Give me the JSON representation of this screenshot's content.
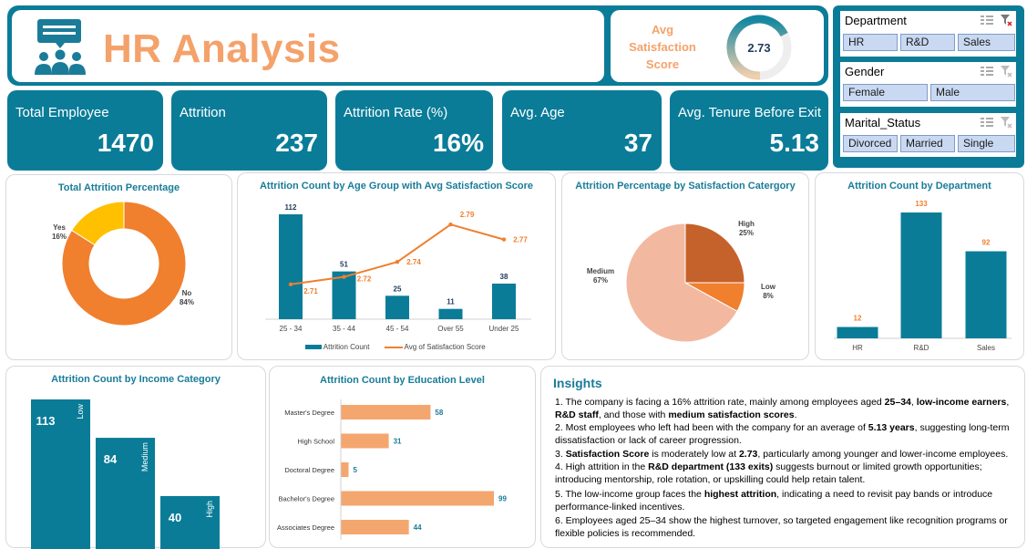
{
  "header": {
    "title": "HR Analysis",
    "gauge_label": "Avg Satisfaction Score",
    "gauge_value": "2.73",
    "gauge_fraction": 0.68
  },
  "kpis": [
    {
      "label": "Total Employee",
      "value": "1470"
    },
    {
      "label": "Attrition",
      "value": "237"
    },
    {
      "label": "Attrition Rate (%)",
      "value": "16%"
    },
    {
      "label": "Avg.  Age",
      "value": "37"
    },
    {
      "label": "Avg.  Tenure Before Exit",
      "value": "5.13"
    }
  ],
  "slicers": [
    {
      "title": "Department",
      "options": [
        "HR",
        "R&D",
        "Sales"
      ]
    },
    {
      "title": "Gender",
      "options": [
        "Female",
        "Male"
      ]
    },
    {
      "title": "Marital_Status",
      "options": [
        "Divorced",
        "Married",
        "Single"
      ]
    }
  ],
  "colors": {
    "teal": "#0a7c98",
    "orange": "#f07f2e",
    "yellow": "#ffc000",
    "peach": "#f4a66f",
    "gauge_start": "#12869f",
    "gauge_end": "#f0cfae"
  },
  "chart_data": [
    {
      "type": "pie",
      "title": "Total Attrition Percentage",
      "donut": true,
      "slices": [
        {
          "name": "Yes",
          "value": 16,
          "label": "16%"
        },
        {
          "name": "No",
          "value": 84,
          "label": "84%"
        }
      ]
    },
    {
      "type": "bar",
      "title": "Attrition Count by Age Group with Avg Satisfaction Score",
      "categories": [
        "25 - 34",
        "35 - 44",
        "45 - 54",
        "Over 55",
        "Under 25"
      ],
      "series": [
        {
          "name": "Attrition Count",
          "type": "bar",
          "values": [
            112,
            51,
            25,
            11,
            38
          ]
        },
        {
          "name": "Avg of Satisfaction Score",
          "type": "line",
          "values": [
            2.71,
            2.72,
            2.74,
            2.79,
            2.77
          ]
        }
      ],
      "legend": "bottom"
    },
    {
      "type": "pie",
      "title": "Attrition Percentage by Satisfaction Catergory",
      "slices": [
        {
          "name": "High",
          "value": 25,
          "label": "25%"
        },
        {
          "name": "Low",
          "value": 8,
          "label": "8%"
        },
        {
          "name": "Medium",
          "value": 67,
          "label": "67%"
        }
      ]
    },
    {
      "type": "bar",
      "title": "Attrition Count  by Department",
      "categories": [
        "HR",
        "R&D",
        "Sales"
      ],
      "values": [
        12,
        133,
        92
      ]
    },
    {
      "type": "bar",
      "title": "Attrition Count by Income Category",
      "categories": [
        "Low",
        "Medium",
        "High"
      ],
      "values": [
        113,
        84,
        40
      ]
    },
    {
      "type": "bar",
      "orientation": "horizontal",
      "title": "Attrition Count by Education Level",
      "categories": [
        "Master's Degree",
        "High School",
        "Doctoral Degree",
        "Bachelor's Degree",
        "Associates Degree"
      ],
      "values": [
        58,
        31,
        5,
        99,
        44
      ]
    }
  ],
  "insights": {
    "title": "Insights",
    "items": [
      [
        {
          "t": "1. The company is facing a 16% attrition rate, mainly among employees aged "
        },
        {
          "t": "25–34",
          "b": true
        },
        {
          "t": ", "
        },
        {
          "t": "low-income earners",
          "b": true
        },
        {
          "t": ", "
        },
        {
          "t": "R&D staff",
          "b": true
        },
        {
          "t": ", and those with "
        },
        {
          "t": "medium satisfaction scores",
          "b": true
        },
        {
          "t": "."
        }
      ],
      [
        {
          "t": "2. Most employees who left had been with the company for an average of "
        },
        {
          "t": "5.13 years",
          "b": true
        },
        {
          "t": ", suggesting long-term dissatisfaction or lack of career progression."
        }
      ],
      [
        {
          "t": "3. "
        },
        {
          "t": "Satisfaction Score",
          "b": true
        },
        {
          "t": " is moderately low at "
        },
        {
          "t": "2.73",
          "b": true
        },
        {
          "t": ", particularly among younger and lower-income employees."
        }
      ],
      [
        {
          "t": "4. High attrition in the "
        },
        {
          "t": "R&D department (133 exits)",
          "b": true
        },
        {
          "t": " suggests burnout or limited growth opportunities; introducing mentorship, role rotation, or upskilling could help retain talent."
        }
      ],
      [
        {
          "t": "5. The low-income group faces the "
        },
        {
          "t": "highest attrition",
          "b": true
        },
        {
          "t": ", indicating a need to revisit pay bands or introduce performance-linked incentives."
        }
      ],
      [
        {
          "t": "6. Employees aged 25–34 show the highest turnover, so targeted engagement like recognition programs or flexible policies is recommended."
        }
      ]
    ]
  }
}
